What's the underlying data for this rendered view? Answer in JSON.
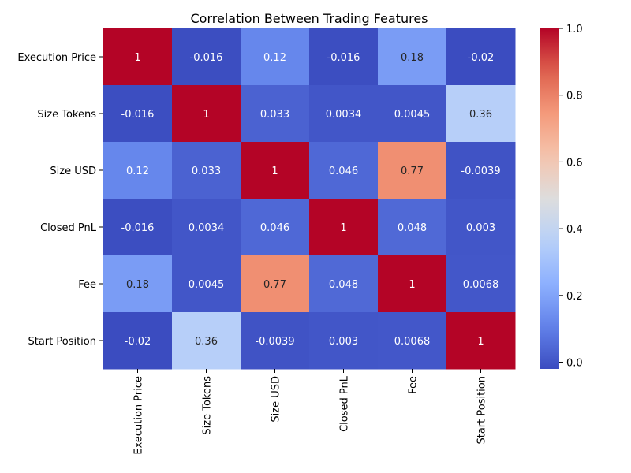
{
  "chart_data": {
    "type": "heatmap",
    "title": "Correlation Between Trading Features",
    "xlabel": "",
    "ylabel": "",
    "rows": [
      "Execution Price",
      "Size Tokens",
      "Size USD",
      "Closed PnL",
      "Fee",
      "Start Position"
    ],
    "columns": [
      "Execution Price",
      "Size Tokens",
      "Size USD",
      "Closed PnL",
      "Fee",
      "Start Position"
    ],
    "values": [
      [
        1,
        -0.016,
        0.12,
        -0.016,
        0.18,
        -0.02
      ],
      [
        -0.016,
        1,
        0.033,
        0.0034,
        0.0045,
        0.36
      ],
      [
        0.12,
        0.033,
        1,
        0.046,
        0.77,
        -0.0039
      ],
      [
        -0.016,
        0.0034,
        0.046,
        1,
        0.048,
        0.003
      ],
      [
        0.18,
        0.0045,
        0.77,
        0.048,
        1,
        0.0068
      ],
      [
        -0.02,
        0.36,
        -0.0039,
        0.003,
        0.0068,
        1
      ]
    ],
    "value_labels": [
      [
        "1",
        "-0.016",
        "0.12",
        "-0.016",
        "0.18",
        "-0.02"
      ],
      [
        "-0.016",
        "1",
        "0.033",
        "0.0034",
        "0.0045",
        "0.36"
      ],
      [
        "0.12",
        "0.033",
        "1",
        "0.046",
        "0.77",
        "-0.0039"
      ],
      [
        "-0.016",
        "0.0034",
        "0.046",
        "1",
        "0.048",
        "0.003"
      ],
      [
        "0.18",
        "0.0045",
        "0.77",
        "0.048",
        "1",
        "0.0068"
      ],
      [
        "-0.02",
        "0.36",
        "-0.0039",
        "0.003",
        "0.0068",
        "1"
      ]
    ],
    "colormap": "coolwarm",
    "colorbar": {
      "min": -0.02,
      "max": 1,
      "ticks": [
        "0.0",
        "0.2",
        "0.4",
        "0.6",
        "0.8",
        "1.0"
      ],
      "tick_values": [
        0,
        0.2,
        0.4,
        0.6,
        0.8,
        1.0
      ]
    }
  }
}
